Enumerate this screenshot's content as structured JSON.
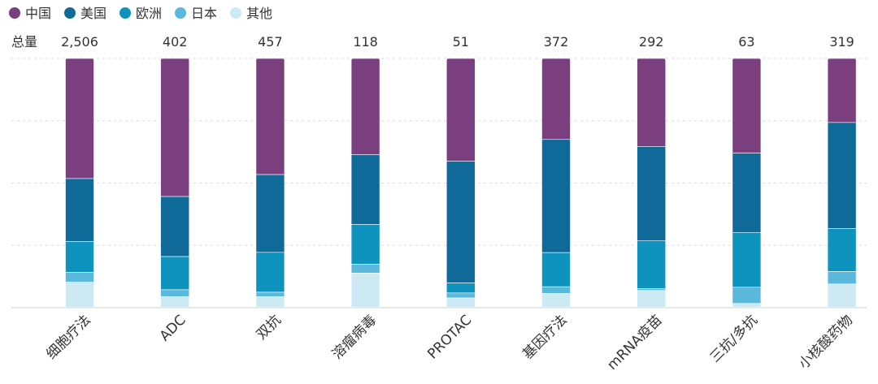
{
  "chart_data": {
    "type": "bar",
    "stacked": "100%",
    "grid": true,
    "legend_position": "top-left",
    "total_label": "总量",
    "categories": [
      "细胞疗法",
      "ADC",
      "双抗",
      "溶瘤病毒",
      "PROTAC",
      "基因疗法",
      "mRNA疫苗",
      "三抗/多抗",
      "小核酸药物"
    ],
    "totals": [
      "2,506",
      "402",
      "457",
      "118",
      "51",
      "372",
      "292",
      "63",
      "319"
    ],
    "series": [
      {
        "name": "中国",
        "color": "#7b3f7f",
        "values": [
          48.2,
          55.4,
          46.6,
          38.6,
          41.2,
          32.5,
          35.3,
          38.0,
          25.7
        ]
      },
      {
        "name": "美国",
        "color": "#0f6a99",
        "values": [
          25.3,
          24.1,
          31.2,
          28.0,
          48.9,
          45.4,
          37.9,
          31.8,
          42.5
        ]
      },
      {
        "name": "欧洲",
        "color": "#0d93bd",
        "values": [
          12.3,
          13.3,
          16.0,
          16.0,
          4.0,
          13.7,
          19.2,
          22.0,
          17.3
        ]
      },
      {
        "name": "日本",
        "color": "#5ab8dc",
        "values": [
          4.0,
          2.8,
          1.8,
          3.5,
          2.0,
          2.7,
          0.7,
          6.5,
          5.0
        ]
      },
      {
        "name": "其他",
        "color": "#cde9f3",
        "values": [
          10.2,
          4.4,
          4.4,
          13.9,
          3.9,
          5.7,
          6.9,
          1.7,
          9.5
        ]
      }
    ]
  }
}
